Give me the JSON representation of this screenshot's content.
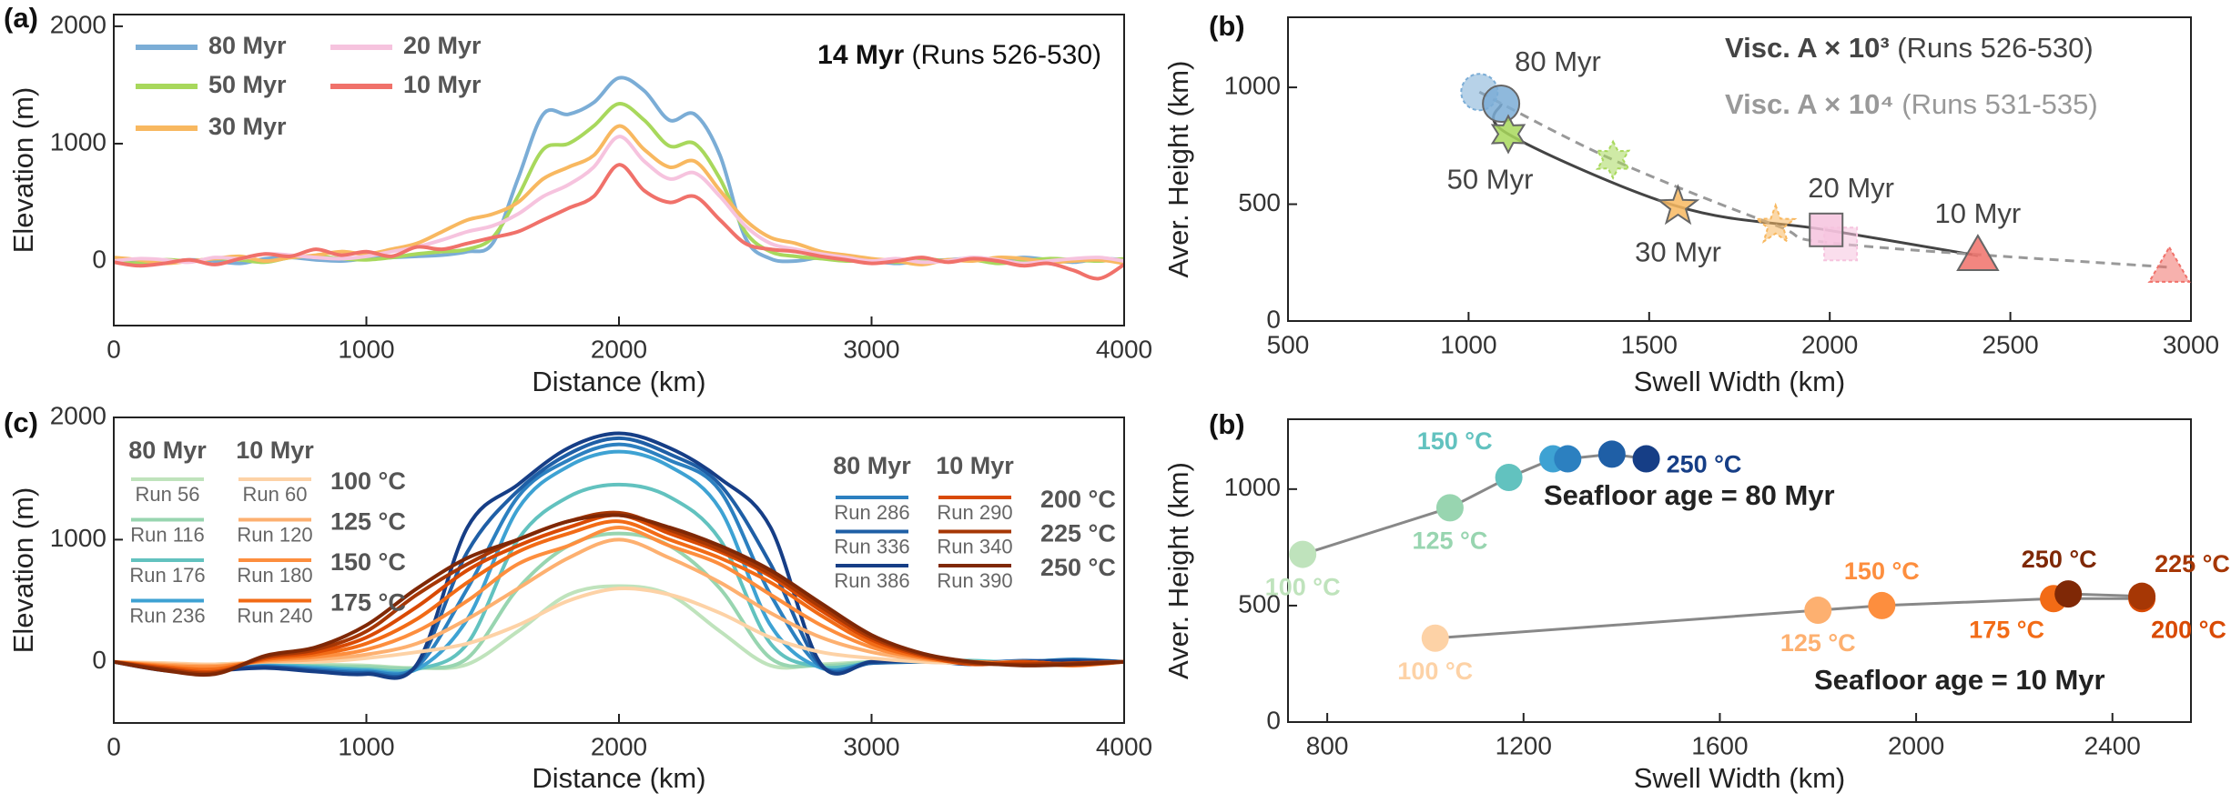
{
  "chart_data": [
    {
      "type": "line",
      "panel_label": "(a)",
      "xlabel": "Distance (km)",
      "ylabel": "Elevation (m)",
      "annotation": {
        "bold": "14 Myr",
        "text": "(Runs 526-530)"
      },
      "xlim": [
        0,
        4000
      ],
      "xticks": [
        0,
        1000,
        2000,
        3000,
        4000
      ],
      "ylim": [
        -550,
        2100
      ],
      "yticks": [
        0,
        1000,
        2000
      ],
      "x": [
        0,
        100,
        200,
        300,
        400,
        500,
        600,
        700,
        800,
        900,
        1000,
        1100,
        1200,
        1300,
        1400,
        1500,
        1600,
        1700,
        1800,
        1900,
        2000,
        2100,
        2200,
        2300,
        2400,
        2500,
        2600,
        2700,
        2800,
        2900,
        3000,
        3100,
        3200,
        3300,
        3400,
        3500,
        3600,
        3700,
        3800,
        3900,
        4000
      ],
      "series": [
        {
          "name": "80 Myr",
          "color": "#7badd6",
          "values": [
            20,
            0,
            -10,
            10,
            0,
            -20,
            20,
            30,
            10,
            0,
            20,
            30,
            40,
            50,
            80,
            150,
            700,
            1250,
            1250,
            1350,
            1560,
            1450,
            1200,
            1250,
            900,
            200,
            20,
            0,
            30,
            10,
            0,
            -20,
            0,
            10,
            20,
            0,
            30,
            10,
            -10,
            20,
            10
          ]
        },
        {
          "name": "50 Myr",
          "color": "#a8d85c",
          "values": [
            0,
            -20,
            10,
            0,
            20,
            10,
            -10,
            30,
            40,
            20,
            10,
            30,
            60,
            80,
            100,
            200,
            550,
            950,
            1000,
            1150,
            1340,
            1200,
            980,
            1000,
            700,
            250,
            80,
            40,
            20,
            0,
            10,
            -10,
            20,
            0,
            10,
            -20,
            0,
            20,
            10,
            0,
            20
          ]
        },
        {
          "name": "30 Myr",
          "color": "#f8b860",
          "values": [
            30,
            10,
            -20,
            0,
            20,
            40,
            0,
            30,
            50,
            80,
            60,
            100,
            150,
            250,
            350,
            400,
            500,
            700,
            800,
            900,
            1150,
            950,
            800,
            850,
            600,
            350,
            200,
            150,
            80,
            50,
            20,
            0,
            -30,
            10,
            0,
            30,
            20,
            -10,
            0,
            10,
            -20
          ]
        },
        {
          "name": "20 Myr",
          "color": "#f6c3de",
          "values": [
            0,
            20,
            10,
            -10,
            30,
            20,
            60,
            50,
            30,
            20,
            40,
            80,
            120,
            180,
            250,
            300,
            400,
            550,
            650,
            800,
            1060,
            850,
            700,
            750,
            550,
            300,
            150,
            100,
            60,
            30,
            0,
            20,
            -10,
            0,
            30,
            10,
            -20,
            0,
            20,
            30,
            0
          ]
        },
        {
          "name": "10 Myr",
          "color": "#f0716a",
          "values": [
            -10,
            -40,
            -20,
            10,
            -30,
            20,
            60,
            40,
            100,
            50,
            80,
            40,
            120,
            100,
            150,
            200,
            250,
            350,
            450,
            550,
            820,
            600,
            500,
            550,
            350,
            150,
            100,
            80,
            40,
            10,
            -20,
            0,
            30,
            -10,
            20,
            0,
            -40,
            -20,
            -80,
            -150,
            -30
          ]
        }
      ]
    },
    {
      "type": "scatter",
      "panel_label": "(b)",
      "xlabel": "Swell Width (km)",
      "ylabel": "Aver. Height (km)",
      "xlim": [
        500,
        3000
      ],
      "xticks": [
        500,
        1000,
        1500,
        2000,
        2500,
        3000
      ],
      "ylim": [
        0,
        1300
      ],
      "yticks": [
        0,
        500,
        1000
      ],
      "point_labels": [
        "80 Myr",
        "50 Myr",
        "30 Myr",
        "20 Myr",
        "10 Myr"
      ],
      "point_colors": [
        "#7badd6",
        "#a8d85c",
        "#f8b860",
        "#f6c3de",
        "#f0716a"
      ],
      "markers": [
        "circle",
        "hexagram",
        "star",
        "square",
        "triangle"
      ],
      "series": [
        {
          "name": "Visc. A × 10³",
          "runs": "(Runs 526-530)",
          "color": "#444444",
          "linestyle": "solid",
          "x": [
            1090,
            1110,
            1580,
            1990,
            2410
          ],
          "values": [
            930,
            800,
            490,
            390,
            280
          ]
        },
        {
          "name": "Visc. A × 10⁴",
          "runs": "(Runs 531-535)",
          "color": "#999999",
          "linestyle": "dashed",
          "x": [
            1030,
            1400,
            1850,
            2030,
            2940
          ],
          "values": [
            980,
            690,
            410,
            330,
            230
          ]
        }
      ]
    },
    {
      "type": "line",
      "panel_label": "(c)",
      "xlabel": "Distance (km)",
      "ylabel": "Elevation (m)",
      "xlim": [
        0,
        4000
      ],
      "xticks": [
        0,
        1000,
        2000,
        3000,
        4000
      ],
      "ylim": [
        -500,
        2000
      ],
      "yticks": [
        0,
        1000,
        2000
      ],
      "legend_headers": [
        [
          "80 Myr",
          "10 Myr"
        ],
        [
          "80 Myr",
          "10 Myr"
        ]
      ],
      "temperatures": [
        "100 °C",
        "125 °C",
        "150 °C",
        "175 °C",
        "200 °C",
        "225 °C",
        "250 °C"
      ],
      "x": [
        0,
        200,
        400,
        600,
        800,
        1000,
        1200,
        1400,
        1600,
        1800,
        2000,
        2200,
        2400,
        2600,
        2800,
        3000,
        3200,
        3400,
        3600,
        3800,
        4000
      ],
      "series": [
        {
          "name": "Run 56",
          "color": "#bfe3bc",
          "values": [
            0,
            -20,
            -30,
            0,
            -20,
            -30,
            -50,
            -20,
            250,
            550,
            620,
            550,
            250,
            -30,
            -20,
            0,
            10,
            -10,
            0,
            20,
            0
          ]
        },
        {
          "name": "Run 116",
          "color": "#98d5b0",
          "values": [
            0,
            -30,
            -20,
            -10,
            -30,
            -40,
            -50,
            30,
            600,
            950,
            1050,
            950,
            600,
            30,
            -30,
            0,
            20,
            0,
            -20,
            10,
            0
          ]
        },
        {
          "name": "Run 176",
          "color": "#62c2bf",
          "values": [
            0,
            -40,
            -30,
            -20,
            -40,
            -60,
            -60,
            150,
            1000,
            1350,
            1450,
            1350,
            1000,
            150,
            -40,
            -10,
            0,
            10,
            -10,
            0,
            0
          ]
        },
        {
          "name": "Run 236",
          "color": "#3ea2d3",
          "values": [
            0,
            -50,
            -40,
            -30,
            -50,
            -70,
            -60,
            350,
            1250,
            1600,
            1720,
            1600,
            1250,
            300,
            -50,
            -10,
            10,
            0,
            -20,
            10,
            0
          ]
        },
        {
          "name": "Run 286",
          "color": "#2c80c0",
          "values": [
            0,
            -60,
            -50,
            -40,
            -60,
            -80,
            -40,
            600,
            1350,
            1650,
            1780,
            1650,
            1400,
            550,
            -40,
            0,
            10,
            -10,
            0,
            20,
            0
          ]
        },
        {
          "name": "Run 336",
          "color": "#1f5fa6",
          "values": [
            0,
            -60,
            -60,
            -40,
            -70,
            -90,
            -30,
            900,
            1400,
            1700,
            1830,
            1700,
            1450,
            800,
            -30,
            -10,
            0,
            -10,
            10,
            0,
            0
          ]
        },
        {
          "name": "Run 386",
          "color": "#163e86",
          "values": [
            0,
            -70,
            -70,
            -50,
            -80,
            -100,
            -20,
            1100,
            1450,
            1750,
            1870,
            1750,
            1500,
            1100,
            -20,
            0,
            10,
            -20,
            0,
            10,
            0
          ]
        },
        {
          "name": "Run 60",
          "color": "#fdd2a6",
          "values": [
            0,
            -10,
            -20,
            0,
            0,
            30,
            80,
            150,
            300,
            500,
            600,
            550,
            400,
            200,
            80,
            30,
            0,
            -10,
            0,
            -20,
            0
          ]
        },
        {
          "name": "Run 120",
          "color": "#fdb070",
          "values": [
            0,
            -20,
            -30,
            0,
            20,
            60,
            150,
            350,
            600,
            850,
            1000,
            850,
            650,
            400,
            200,
            80,
            20,
            0,
            -20,
            -10,
            0
          ]
        },
        {
          "name": "Run 180",
          "color": "#fd8e3e",
          "values": [
            0,
            -30,
            -40,
            10,
            40,
            100,
            250,
            500,
            800,
            950,
            1100,
            950,
            800,
            550,
            300,
            120,
            30,
            -10,
            0,
            -20,
            0
          ]
        },
        {
          "name": "Run 240",
          "color": "#f26b16",
          "values": [
            0,
            -40,
            -60,
            20,
            60,
            150,
            350,
            650,
            900,
            1050,
            1150,
            1000,
            850,
            650,
            380,
            150,
            40,
            0,
            -10,
            -30,
            0
          ]
        },
        {
          "name": "Run 290",
          "color": "#d94a04",
          "values": [
            0,
            -50,
            -80,
            30,
            80,
            200,
            450,
            750,
            950,
            1100,
            1200,
            1050,
            900,
            700,
            420,
            180,
            50,
            -20,
            0,
            -20,
            0
          ]
        },
        {
          "name": "Run 340",
          "color": "#a63705",
          "values": [
            0,
            -60,
            -90,
            40,
            100,
            250,
            550,
            800,
            1000,
            1150,
            1220,
            1080,
            920,
            720,
            450,
            200,
            60,
            -10,
            -20,
            -10,
            0
          ]
        },
        {
          "name": "Run 390",
          "color": "#7f2806",
          "values": [
            0,
            -70,
            -100,
            50,
            120,
            300,
            600,
            850,
            1000,
            1150,
            1200,
            1100,
            950,
            750,
            480,
            220,
            70,
            0,
            -30,
            -20,
            0
          ]
        }
      ]
    },
    {
      "type": "scatter",
      "panel_label": "(b)",
      "xlabel": "Swell Width (km)",
      "ylabel": "Aver. Height (km)",
      "xlim": [
        720,
        2560
      ],
      "xticks": [
        800,
        1200,
        1600,
        2000,
        2400
      ],
      "ylim": [
        0,
        1300
      ],
      "yticks": [
        0,
        500,
        1000
      ],
      "series": [
        {
          "name": "Seafloor age = 80 Myr",
          "color": "#888888",
          "x": [
            750,
            1050,
            1170,
            1260,
            1290,
            1380,
            1450
          ],
          "values": [
            720,
            920,
            1050,
            1130,
            1130,
            1150,
            1130
          ],
          "point_colors": [
            "#bfe3bc",
            "#98d5b0",
            "#62c2bf",
            "#3ea2d3",
            "#2c80c0",
            "#1f5fa6",
            "#163e86"
          ],
          "point_labels": [
            "100 °C",
            "125 °C",
            "150 °C",
            null,
            null,
            null,
            "250 °C"
          ]
        },
        {
          "name": "Seafloor age = 10 Myr",
          "color": "#888888",
          "x": [
            1020,
            1800,
            1930,
            2280,
            2460,
            2460,
            2310
          ],
          "values": [
            360,
            480,
            500,
            530,
            530,
            540,
            550
          ],
          "point_colors": [
            "#fdd2a6",
            "#fdb070",
            "#fd8e3e",
            "#f26b16",
            "#d94a04",
            "#a63705",
            "#7f2806"
          ],
          "point_labels": [
            "100 °C",
            "125 °C",
            "150 °C",
            "175 °C",
            "200 °C",
            "225 °C",
            "250 °C"
          ]
        }
      ]
    }
  ]
}
